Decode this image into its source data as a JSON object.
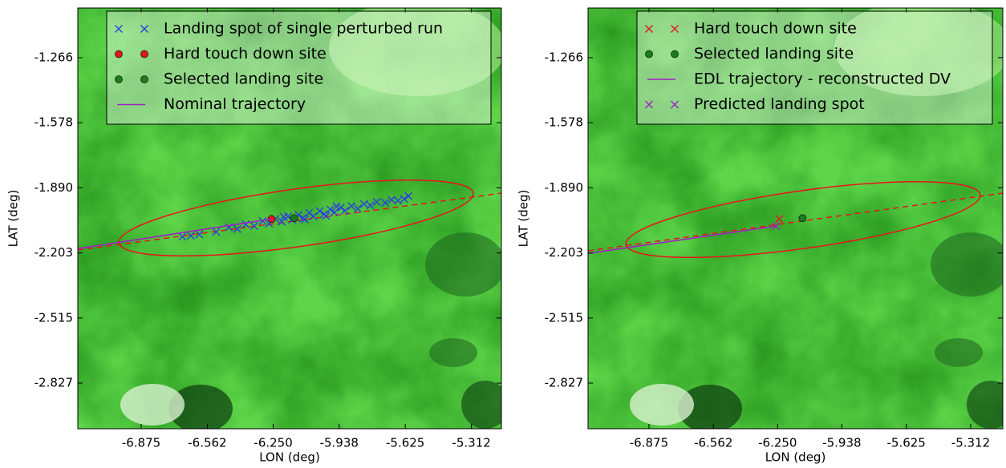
{
  "chart_data": [
    {
      "type": "scatter",
      "xlabel": "LON (deg)",
      "ylabel": "LAT (deg)",
      "xlim": [
        -7.175,
        -5.17
      ],
      "ylim": [
        -3.046,
        -1.028
      ],
      "xticks": [
        -6.875,
        -6.562,
        {
          "value": -6.25,
          "label": "-6.250"
        },
        -5.938,
        -5.625,
        -5.312
      ],
      "yticks": [
        -1.266,
        -1.578,
        {
          "value": -1.89,
          "label": "-1.890"
        },
        -2.203,
        -2.515,
        -2.827
      ],
      "legend": "upper right",
      "series": [
        {
          "name": "Landing spot of single perturbed run",
          "color": "#2c3fe0",
          "marker": "x",
          "x": [
            -6.68,
            -6.64,
            -6.6,
            -6.52,
            -6.46,
            -6.42,
            -6.38,
            -6.34,
            -6.3,
            -6.27,
            -6.24,
            -6.21,
            -6.18,
            -6.16,
            -6.13,
            -6.11,
            -6.08,
            -6.06,
            -6.03,
            -6.01,
            -5.98,
            -5.96,
            -5.93,
            -5.91,
            -5.88,
            -5.85,
            -5.82,
            -5.79,
            -5.76,
            -5.72,
            -5.69,
            -5.66,
            -5.63,
            -5.61,
            -6.2,
            -6.1,
            -6.0,
            -5.95
          ],
          "y": [
            -2.125,
            -2.12,
            -2.114,
            -2.102,
            -2.08,
            -2.088,
            -2.066,
            -2.074,
            -2.05,
            -2.062,
            -2.04,
            -2.053,
            -2.028,
            -2.044,
            -2.02,
            -2.036,
            -2.01,
            -2.027,
            -2.002,
            -2.018,
            -1.994,
            -2.008,
            -1.985,
            -2.0,
            -1.978,
            -1.99,
            -1.968,
            -1.975,
            -1.958,
            -1.962,
            -1.948,
            -1.952,
            -1.944,
            -1.93,
            -2.03,
            -2.042,
            -2.025,
            -1.98
          ]
        },
        {
          "name": "Hard touch down site",
          "color": "#e8141a",
          "marker": "o",
          "x": [
            -6.258
          ],
          "y": [
            -2.04
          ]
        },
        {
          "name": "Selected landing site",
          "color": "#1e7a1e",
          "marker": "o",
          "x": [
            -6.151
          ],
          "y": [
            -2.036
          ]
        },
        {
          "name": "Nominal trajectory",
          "color": "#a020c0",
          "marker": "line",
          "x": [
            -7.175,
            -6.258
          ],
          "y": [
            -2.182,
            -2.04
          ]
        }
      ]
    },
    {
      "type": "scatter",
      "xlabel": "LON (deg)",
      "ylabel": "LAT (deg)",
      "xlim": [
        -7.171,
        -5.156
      ],
      "ylim": [
        -3.046,
        -1.028
      ],
      "xticks": [
        -6.875,
        -6.562,
        {
          "value": -6.25,
          "label": "-6.250"
        },
        -5.938,
        -5.625,
        -5.312
      ],
      "yticks": [
        -1.266,
        -1.578,
        {
          "value": -1.89,
          "label": "-1.890"
        },
        -2.203,
        -2.515,
        -2.827
      ],
      "legend": "upper right",
      "series": [
        {
          "name": "Hard touch down site",
          "color": "#e8141a",
          "marker": "x",
          "x": [
            -6.242
          ],
          "y": [
            -2.04
          ]
        },
        {
          "name": "Selected landing site",
          "color": "#1e7a1e",
          "marker": "o",
          "x": [
            -6.129
          ],
          "y": [
            -2.036
          ]
        },
        {
          "name": "EDL trajectory - reconstructed DV",
          "color": "#a020c0",
          "marker": "line",
          "x": [
            -7.171,
            -6.258
          ],
          "y": [
            -2.205,
            -2.074
          ]
        },
        {
          "name": "Predicted landing spot",
          "color": "#a020c0",
          "marker": "x",
          "x": [
            -6.258
          ],
          "y": [
            -2.074
          ]
        }
      ]
    }
  ]
}
